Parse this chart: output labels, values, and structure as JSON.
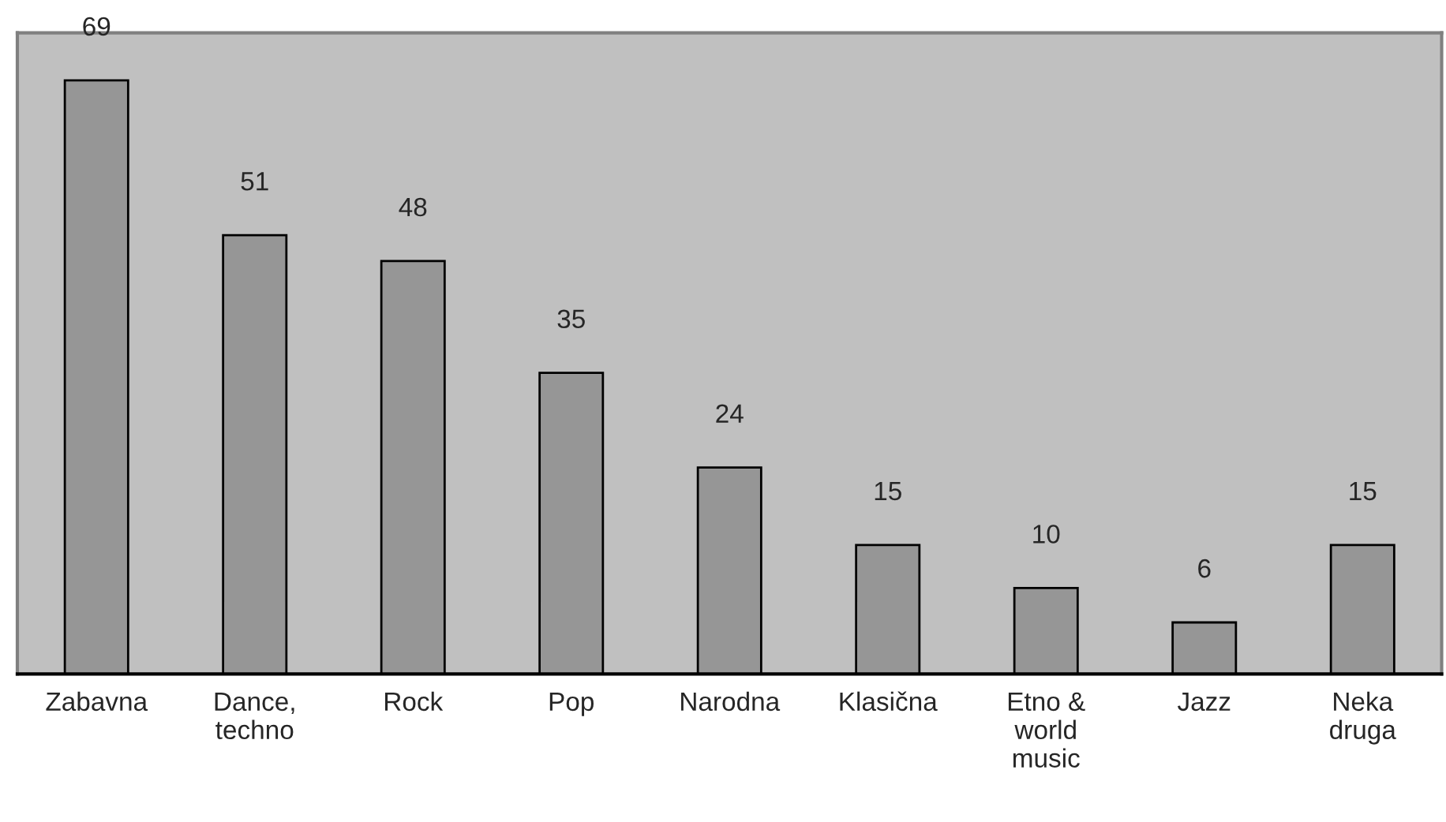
{
  "chart_data": {
    "type": "bar",
    "categories": [
      "Zabavna",
      "Dance, techno",
      "Rock",
      "Pop",
      "Narodna",
      "Klasična",
      "Etno & world music",
      "Jazz",
      "Neka druga"
    ],
    "values": [
      69,
      51,
      48,
      35,
      24,
      15,
      10,
      6,
      15
    ],
    "color": "#969696",
    "data_labels": true,
    "grid": false,
    "legend": false
  }
}
